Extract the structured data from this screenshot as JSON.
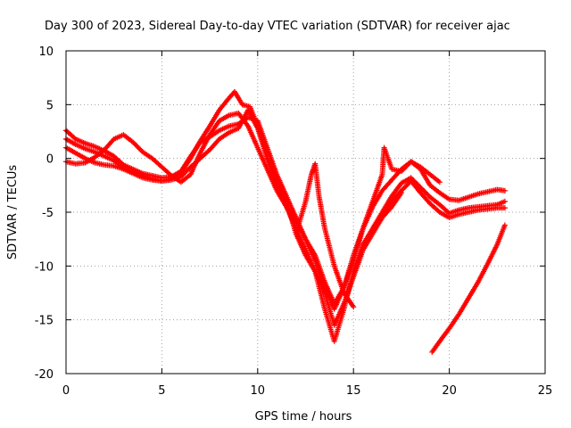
{
  "chart_data": {
    "type": "scatter",
    "title": "Day 300 of 2023, Sidereal Day-to-day VTEC variation (SDTVAR) for receiver ajac",
    "xlabel": "GPS time / hours",
    "ylabel": "SDTVAR / TECUs",
    "xlim": [
      0,
      25
    ],
    "ylim": [
      -20,
      10
    ],
    "xticks": [
      "0",
      "5",
      "10",
      "15",
      "20",
      "25"
    ],
    "yticks": [
      "-20",
      "-15",
      "-10",
      "-5",
      "0",
      "5",
      "10"
    ],
    "grid": true,
    "marker": "plus",
    "color": "#ff0000",
    "series": [
      {
        "points": [
          [
            0.0,
            2.6
          ],
          [
            0.5,
            1.8
          ],
          [
            1.0,
            1.4
          ],
          [
            1.5,
            1.1
          ],
          [
            2.0,
            0.7
          ],
          [
            2.5,
            0.2
          ],
          [
            3.0,
            -0.6
          ],
          [
            3.5,
            -1.0
          ],
          [
            4.0,
            -1.4
          ],
          [
            4.5,
            -1.6
          ],
          [
            5.0,
            -1.8
          ],
          [
            5.5,
            -1.7
          ],
          [
            6.0,
            -1.2
          ],
          [
            6.5,
            0.2
          ],
          [
            7.0,
            1.5
          ],
          [
            7.5,
            2.0
          ],
          [
            8.0,
            2.6
          ],
          [
            8.5,
            3.0
          ],
          [
            9.0,
            3.2
          ],
          [
            9.5,
            3.8
          ],
          [
            10.0,
            3.5
          ],
          [
            10.5,
            1.0
          ],
          [
            11.0,
            -1.5
          ],
          [
            11.5,
            -3.5
          ],
          [
            12.0,
            -5.5
          ],
          [
            12.5,
            -7.5
          ],
          [
            13.0,
            -9.5
          ],
          [
            13.5,
            -12.0
          ],
          [
            14.0,
            -14.0
          ],
          [
            14.5,
            -12.0
          ],
          [
            15.0,
            -9.5
          ],
          [
            15.5,
            -6.5
          ],
          [
            16.0,
            -4.5
          ],
          [
            16.5,
            -3.0
          ],
          [
            17.0,
            -2.0
          ],
          [
            17.5,
            -1.0
          ],
          [
            18.0,
            -0.3
          ],
          [
            18.5,
            -1.0
          ],
          [
            19.0,
            -2.5
          ],
          [
            19.5,
            -3.2
          ],
          [
            20.0,
            -3.8
          ],
          [
            20.5,
            -3.9
          ],
          [
            21.0,
            -3.6
          ],
          [
            21.5,
            -3.3
          ],
          [
            22.0,
            -3.1
          ],
          [
            22.5,
            -2.9
          ],
          [
            22.9,
            -3.0
          ]
        ]
      },
      {
        "points": [
          [
            0.0,
            1.8
          ],
          [
            0.5,
            1.3
          ],
          [
            1.0,
            0.9
          ],
          [
            1.5,
            0.6
          ],
          [
            2.0,
            0.2
          ],
          [
            2.5,
            -0.2
          ],
          [
            3.0,
            -0.8
          ],
          [
            3.5,
            -1.2
          ],
          [
            4.0,
            -1.6
          ],
          [
            4.5,
            -1.9
          ],
          [
            5.0,
            -2.1
          ],
          [
            5.5,
            -1.9
          ],
          [
            6.0,
            -1.3
          ],
          [
            6.5,
            0.0
          ],
          [
            7.0,
            1.6
          ],
          [
            7.5,
            3.0
          ],
          [
            8.0,
            4.5
          ],
          [
            8.5,
            5.6
          ],
          [
            8.8,
            6.2
          ],
          [
            9.2,
            5.0
          ],
          [
            9.6,
            4.8
          ],
          [
            10.0,
            3.0
          ],
          [
            10.5,
            0.0
          ],
          [
            11.0,
            -2.5
          ],
          [
            11.5,
            -4.5
          ],
          [
            12.0,
            -6.5
          ],
          [
            12.5,
            -8.5
          ],
          [
            13.0,
            -10.5
          ],
          [
            13.5,
            -14.0
          ],
          [
            14.0,
            -17.0
          ],
          [
            14.5,
            -14.0
          ],
          [
            15.0,
            -10.5
          ],
          [
            15.5,
            -8.0
          ],
          [
            16.0,
            -6.5
          ],
          [
            16.5,
            -5.0
          ],
          [
            17.0,
            -3.5
          ],
          [
            17.5,
            -2.3
          ],
          [
            18.0,
            -1.8
          ],
          [
            18.5,
            -2.7
          ],
          [
            19.0,
            -3.6
          ],
          [
            19.5,
            -4.3
          ],
          [
            20.0,
            -5.1
          ],
          [
            20.5,
            -4.8
          ],
          [
            21.0,
            -4.6
          ],
          [
            21.5,
            -4.5
          ],
          [
            22.0,
            -4.4
          ],
          [
            22.5,
            -4.3
          ],
          [
            22.9,
            -4.0
          ]
        ]
      },
      {
        "points": [
          [
            0.0,
            1.0
          ],
          [
            0.5,
            0.5
          ],
          [
            1.0,
            0.0
          ],
          [
            1.5,
            -0.4
          ],
          [
            2.0,
            -0.6
          ],
          [
            2.5,
            -0.7
          ],
          [
            3.0,
            -1.0
          ],
          [
            3.5,
            -1.4
          ],
          [
            4.0,
            -1.8
          ],
          [
            4.5,
            -2.0
          ],
          [
            5.0,
            -2.1
          ],
          [
            5.5,
            -2.0
          ],
          [
            6.0,
            -1.7
          ],
          [
            6.5,
            -0.8
          ],
          [
            7.0,
            0.0
          ],
          [
            7.5,
            0.8
          ],
          [
            8.0,
            1.8
          ],
          [
            8.5,
            2.4
          ],
          [
            9.0,
            2.8
          ],
          [
            9.5,
            4.5
          ],
          [
            10.0,
            2.8
          ],
          [
            10.5,
            0.0
          ],
          [
            11.0,
            -2.0
          ],
          [
            11.5,
            -4.0
          ],
          [
            12.0,
            -7.0
          ],
          [
            12.5,
            -9.0
          ],
          [
            13.0,
            -10.5
          ],
          [
            13.5,
            -12.5
          ],
          [
            14.0,
            -15.5
          ],
          [
            14.5,
            -13.5
          ],
          [
            15.0,
            -11.0
          ],
          [
            15.5,
            -8.5
          ],
          [
            16.0,
            -7.0
          ],
          [
            16.5,
            -5.5
          ],
          [
            17.0,
            -4.0
          ],
          [
            17.5,
            -3.0
          ],
          [
            18.0,
            -2.1
          ],
          [
            18.5,
            -3.2
          ],
          [
            19.0,
            -4.2
          ],
          [
            19.5,
            -5.0
          ],
          [
            20.0,
            -5.5
          ],
          [
            20.5,
            -5.2
          ],
          [
            21.0,
            -5.0
          ],
          [
            21.5,
            -4.8
          ],
          [
            22.0,
            -4.7
          ],
          [
            22.5,
            -4.6
          ],
          [
            22.9,
            -4.6
          ]
        ]
      },
      {
        "points": [
          [
            0.0,
            -0.3
          ],
          [
            0.5,
            -0.5
          ],
          [
            1.0,
            -0.4
          ],
          [
            1.5,
            0.1
          ],
          [
            2.0,
            0.8
          ],
          [
            2.5,
            1.8
          ],
          [
            3.0,
            2.2
          ],
          [
            3.5,
            1.5
          ],
          [
            4.0,
            0.6
          ],
          [
            4.5,
            0.0
          ],
          [
            5.0,
            -0.8
          ],
          [
            5.5,
            -1.6
          ],
          [
            6.0,
            -2.2
          ],
          [
            6.5,
            -1.5
          ],
          [
            7.0,
            0.5
          ],
          [
            7.5,
            2.2
          ],
          [
            8.0,
            3.5
          ],
          [
            8.5,
            4.0
          ],
          [
            9.0,
            4.2
          ],
          [
            9.5,
            3.0
          ],
          [
            10.0,
            1.0
          ],
          [
            10.5,
            -1.0
          ],
          [
            11.0,
            -3.0
          ],
          [
            11.5,
            -4.5
          ],
          [
            12.0,
            -5.8
          ],
          [
            12.5,
            -7.5
          ],
          [
            13.0,
            -9.0
          ],
          [
            13.5,
            -11.5
          ],
          [
            14.0,
            -13.5
          ],
          [
            14.5,
            -12.0
          ],
          [
            15.0,
            -9.0
          ],
          [
            15.5,
            -6.5
          ],
          [
            16.0,
            -4.0
          ],
          [
            16.5,
            -1.5
          ],
          [
            16.6,
            1.0
          ],
          [
            17.0,
            -1.0
          ],
          [
            17.5,
            -1.2
          ],
          [
            18.0,
            -0.3
          ],
          [
            18.5,
            -0.8
          ],
          [
            19.0,
            -1.5
          ],
          [
            19.5,
            -2.2
          ]
        ]
      },
      {
        "points": [
          [
            12.0,
            -7.0
          ],
          [
            12.5,
            -4.0
          ],
          [
            12.8,
            -1.5
          ],
          [
            13.0,
            -0.5
          ],
          [
            13.2,
            -3.5
          ],
          [
            13.5,
            -6.5
          ],
          [
            14.0,
            -10.0
          ],
          [
            14.5,
            -12.5
          ],
          [
            15.0,
            -13.8
          ]
        ]
      },
      {
        "points": [
          [
            16.0,
            -6.8
          ],
          [
            16.5,
            -5.5
          ],
          [
            17.0,
            -4.5
          ],
          [
            17.5,
            -3.2
          ]
        ]
      },
      {
        "points": [
          [
            19.1,
            -18.0
          ],
          [
            19.5,
            -17.0
          ],
          [
            20.0,
            -15.8
          ],
          [
            20.5,
            -14.5
          ],
          [
            21.0,
            -13.0
          ],
          [
            21.5,
            -11.5
          ],
          [
            22.0,
            -9.8
          ],
          [
            22.5,
            -8.0
          ],
          [
            22.9,
            -6.2
          ]
        ]
      }
    ]
  }
}
